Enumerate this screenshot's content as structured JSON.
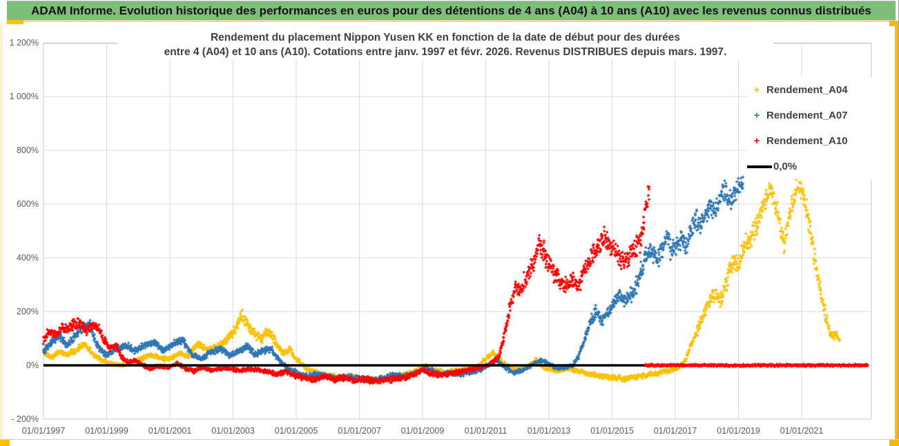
{
  "header": {
    "title": "ADAM Informe. Evolution historique des performances en euros pour des détentions de 4 ans (A04) à 10 ans (A10) avec les revenus connus distribués"
  },
  "chart_data": {
    "type": "scatter",
    "title_line1": "Rendement du placement Nippon Yusen KK en fonction de la date de début pour des durées",
    "title_line2": "entre 4 (A04) et 10 ans (A10). Cotations entre janv. 1997 et févr. 2026. Revenus DISTRIBUES depuis mars. 1997.",
    "grid": true,
    "x_axis": {
      "tick_labels": [
        "01/01/1997",
        "01/01/1999",
        "01/01/2001",
        "01/01/2003",
        "01/01/2005",
        "01/01/2007",
        "01/01/2009",
        "01/01/2011",
        "01/01/2013",
        "01/01/2015",
        "01/01/2017",
        "01/01/2019",
        "01/01/2021"
      ],
      "tick_years": [
        1997,
        1999,
        2001,
        2003,
        2005,
        2007,
        2009,
        2011,
        2013,
        2015,
        2017,
        2019,
        2021
      ],
      "range_years": [
        1997,
        2023.2
      ]
    },
    "y_axis": {
      "tick_labels": [
        "1 200%",
        "1 000%",
        "800%",
        "600%",
        "400%",
        "200%",
        "0%",
        "- 200%"
      ],
      "tick_values": [
        1200,
        1000,
        800,
        600,
        400,
        200,
        0,
        -200
      ],
      "ylim": [
        -200,
        1200
      ],
      "unit": "%"
    },
    "zero_line": {
      "label": "0,0%",
      "value": 0,
      "color": "#000000",
      "x_range_years": [
        1997,
        2017.0
      ]
    },
    "series": [
      {
        "name": "Rendement_A04",
        "color": "#FFC000",
        "marker": "plus",
        "waypoints": [
          [
            1997.0,
            55
          ],
          [
            1997.25,
            28
          ],
          [
            1997.5,
            50
          ],
          [
            1997.75,
            40
          ],
          [
            1998.0,
            55
          ],
          [
            1998.3,
            80
          ],
          [
            1998.6,
            40
          ],
          [
            1998.9,
            15
          ],
          [
            1999.2,
            5
          ],
          [
            1999.5,
            0
          ],
          [
            1999.8,
            10
          ],
          [
            2000.1,
            25
          ],
          [
            2000.4,
            40
          ],
          [
            2000.7,
            25
          ],
          [
            2001.0,
            25
          ],
          [
            2001.3,
            45
          ],
          [
            2001.6,
            35
          ],
          [
            2001.9,
            80
          ],
          [
            2002.2,
            55
          ],
          [
            2002.5,
            70
          ],
          [
            2002.8,
            95
          ],
          [
            2003.0,
            120
          ],
          [
            2003.3,
            185
          ],
          [
            2003.5,
            140
          ],
          [
            2003.7,
            115
          ],
          [
            2003.9,
            95
          ],
          [
            2004.1,
            130
          ],
          [
            2004.35,
            85
          ],
          [
            2004.6,
            45
          ],
          [
            2004.8,
            60
          ],
          [
            2005.0,
            25
          ],
          [
            2005.3,
            -10
          ],
          [
            2005.6,
            -25
          ],
          [
            2005.9,
            -35
          ],
          [
            2006.3,
            -45
          ],
          [
            2006.7,
            -40
          ],
          [
            2007.0,
            -50
          ],
          [
            2007.4,
            -55
          ],
          [
            2007.8,
            -50
          ],
          [
            2008.2,
            -40
          ],
          [
            2008.6,
            -30
          ],
          [
            2008.9,
            -15
          ],
          [
            2009.1,
            0
          ],
          [
            2009.35,
            -15
          ],
          [
            2009.7,
            -28
          ],
          [
            2010.0,
            -20
          ],
          [
            2010.3,
            -18
          ],
          [
            2010.7,
            -8
          ],
          [
            2011.0,
            25
          ],
          [
            2011.25,
            50
          ],
          [
            2011.5,
            15
          ],
          [
            2011.75,
            -5
          ],
          [
            2012.0,
            -18
          ],
          [
            2012.3,
            -8
          ],
          [
            2012.6,
            20
          ],
          [
            2012.8,
            -5
          ],
          [
            2013.0,
            -15
          ],
          [
            2013.3,
            -20
          ],
          [
            2013.6,
            -12
          ],
          [
            2013.9,
            -22
          ],
          [
            2014.2,
            -30
          ],
          [
            2014.6,
            -38
          ],
          [
            2015.0,
            -45
          ],
          [
            2015.4,
            -50
          ],
          [
            2015.8,
            -42
          ],
          [
            2016.1,
            -35
          ],
          [
            2016.5,
            -28
          ],
          [
            2016.9,
            -18
          ],
          [
            2017.1,
            -8
          ],
          [
            2017.3,
            15
          ],
          [
            2017.5,
            70
          ],
          [
            2017.7,
            130
          ],
          [
            2017.9,
            185
          ],
          [
            2018.1,
            240
          ],
          [
            2018.3,
            265
          ],
          [
            2018.45,
            240
          ],
          [
            2018.6,
            300
          ],
          [
            2018.8,
            390
          ],
          [
            2019.0,
            370
          ],
          [
            2019.2,
            450
          ],
          [
            2019.4,
            480
          ],
          [
            2019.6,
            530
          ],
          [
            2019.8,
            600
          ],
          [
            2020.0,
            660
          ],
          [
            2020.2,
            580
          ],
          [
            2020.45,
            450
          ],
          [
            2020.7,
            610
          ],
          [
            2020.9,
            685
          ],
          [
            2021.05,
            640
          ],
          [
            2021.25,
            520
          ],
          [
            2021.45,
            370
          ],
          [
            2021.65,
            240
          ],
          [
            2021.85,
            140
          ],
          [
            2022.0,
            105
          ],
          [
            2022.1,
            120
          ],
          [
            2022.2,
            90
          ]
        ]
      },
      {
        "name": "Rendement_A07",
        "color": "#2E75B6",
        "marker": "plus",
        "waypoints": [
          [
            1997.0,
            50
          ],
          [
            1997.25,
            85
          ],
          [
            1997.5,
            115
          ],
          [
            1997.75,
            75
          ],
          [
            1998.0,
            110
          ],
          [
            1998.2,
            140
          ],
          [
            1998.45,
            160
          ],
          [
            1998.7,
            75
          ],
          [
            1999.0,
            35
          ],
          [
            1999.3,
            60
          ],
          [
            1999.6,
            75
          ],
          [
            1999.9,
            55
          ],
          [
            2000.2,
            75
          ],
          [
            2000.5,
            85
          ],
          [
            2000.8,
            55
          ],
          [
            2001.1,
            80
          ],
          [
            2001.4,
            95
          ],
          [
            2001.7,
            40
          ],
          [
            2002.0,
            25
          ],
          [
            2002.3,
            50
          ],
          [
            2002.6,
            60
          ],
          [
            2002.9,
            35
          ],
          [
            2003.2,
            55
          ],
          [
            2003.45,
            70
          ],
          [
            2003.7,
            40
          ],
          [
            2003.95,
            55
          ],
          [
            2004.2,
            60
          ],
          [
            2004.5,
            15
          ],
          [
            2004.8,
            -15
          ],
          [
            2005.1,
            -30
          ],
          [
            2005.4,
            -40
          ],
          [
            2005.7,
            -30
          ],
          [
            2006.0,
            -40
          ],
          [
            2006.3,
            -48
          ],
          [
            2006.6,
            -40
          ],
          [
            2007.0,
            -50
          ],
          [
            2007.4,
            -58
          ],
          [
            2007.8,
            -48
          ],
          [
            2008.1,
            -35
          ],
          [
            2008.5,
            -40
          ],
          [
            2008.85,
            -25
          ],
          [
            2009.1,
            -8
          ],
          [
            2009.35,
            -22
          ],
          [
            2009.6,
            -32
          ],
          [
            2009.9,
            -28
          ],
          [
            2010.2,
            -32
          ],
          [
            2010.5,
            -28
          ],
          [
            2010.8,
            -18
          ],
          [
            2011.1,
            0
          ],
          [
            2011.35,
            22
          ],
          [
            2011.6,
            -8
          ],
          [
            2011.9,
            -28
          ],
          [
            2012.2,
            -18
          ],
          [
            2012.5,
            5
          ],
          [
            2012.75,
            20
          ],
          [
            2013.0,
            5
          ],
          [
            2013.25,
            -12
          ],
          [
            2013.5,
            -8
          ],
          [
            2013.75,
            0
          ],
          [
            2013.95,
            35
          ],
          [
            2014.15,
            105
          ],
          [
            2014.35,
            175
          ],
          [
            2014.5,
            200
          ],
          [
            2014.65,
            160
          ],
          [
            2014.85,
            195
          ],
          [
            2015.05,
            225
          ],
          [
            2015.25,
            265
          ],
          [
            2015.45,
            240
          ],
          [
            2015.65,
            270
          ],
          [
            2015.85,
            320
          ],
          [
            2016.05,
            400
          ],
          [
            2016.25,
            430
          ],
          [
            2016.45,
            390
          ],
          [
            2016.6,
            440
          ],
          [
            2016.75,
            480
          ],
          [
            2016.9,
            420
          ],
          [
            2017.05,
            450
          ],
          [
            2017.2,
            480
          ],
          [
            2017.35,
            440
          ],
          [
            2017.5,
            500
          ],
          [
            2017.65,
            545
          ],
          [
            2017.8,
            520
          ],
          [
            2017.95,
            560
          ],
          [
            2018.1,
            600
          ],
          [
            2018.25,
            555
          ],
          [
            2018.4,
            610
          ],
          [
            2018.55,
            650
          ],
          [
            2018.7,
            610
          ],
          [
            2018.85,
            640
          ],
          [
            2019.0,
            660
          ],
          [
            2019.15,
            675
          ]
        ]
      },
      {
        "name": "Rendement_A10",
        "color": "#FF0000",
        "marker": "plus",
        "waypoints": [
          [
            1997.0,
            95
          ],
          [
            1997.2,
            130
          ],
          [
            1997.4,
            110
          ],
          [
            1997.6,
            145
          ],
          [
            1997.8,
            135
          ],
          [
            1998.0,
            160
          ],
          [
            1998.2,
            150
          ],
          [
            1998.4,
            125
          ],
          [
            1998.55,
            155
          ],
          [
            1998.75,
            135
          ],
          [
            1998.9,
            95
          ],
          [
            1999.1,
            65
          ],
          [
            1999.3,
            75
          ],
          [
            1999.5,
            25
          ],
          [
            1999.7,
            10
          ],
          [
            1999.9,
            18
          ],
          [
            2000.1,
            2
          ],
          [
            2000.4,
            -12
          ],
          [
            2000.7,
            -2
          ],
          [
            2001.0,
            -8
          ],
          [
            2001.25,
            8
          ],
          [
            2001.5,
            -12
          ],
          [
            2001.75,
            -22
          ],
          [
            2002.0,
            -8
          ],
          [
            2002.3,
            -18
          ],
          [
            2002.6,
            -12
          ],
          [
            2002.9,
            -12
          ],
          [
            2003.2,
            -20
          ],
          [
            2003.5,
            -14
          ],
          [
            2003.8,
            -18
          ],
          [
            2004.1,
            -24
          ],
          [
            2004.4,
            -32
          ],
          [
            2004.7,
            -22
          ],
          [
            2005.0,
            -38
          ],
          [
            2005.3,
            -48
          ],
          [
            2005.6,
            -52
          ],
          [
            2005.9,
            -42
          ],
          [
            2006.2,
            -52
          ],
          [
            2006.5,
            -46
          ],
          [
            2006.8,
            -56
          ],
          [
            2007.2,
            -52
          ],
          [
            2007.6,
            -58
          ],
          [
            2008.0,
            -52
          ],
          [
            2008.4,
            -46
          ],
          [
            2008.75,
            -32
          ],
          [
            2009.0,
            -16
          ],
          [
            2009.2,
            -28
          ],
          [
            2009.5,
            -36
          ],
          [
            2009.8,
            -32
          ],
          [
            2010.1,
            -26
          ],
          [
            2010.5,
            -16
          ],
          [
            2010.9,
            -5
          ],
          [
            2011.15,
            5
          ],
          [
            2011.4,
            30
          ],
          [
            2011.6,
            120
          ],
          [
            2011.8,
            230
          ],
          [
            2011.95,
            300
          ],
          [
            2012.1,
            280
          ],
          [
            2012.25,
            320
          ],
          [
            2012.4,
            355
          ],
          [
            2012.55,
            400
          ],
          [
            2012.7,
            460
          ],
          [
            2012.8,
            430
          ],
          [
            2012.95,
            390
          ],
          [
            2013.15,
            340
          ],
          [
            2013.35,
            310
          ],
          [
            2013.55,
            295
          ],
          [
            2013.75,
            320
          ],
          [
            2013.95,
            300
          ],
          [
            2014.15,
            360
          ],
          [
            2014.35,
            410
          ],
          [
            2014.55,
            440
          ],
          [
            2014.75,
            490
          ],
          [
            2014.9,
            450
          ],
          [
            2015.1,
            420
          ],
          [
            2015.3,
            390
          ],
          [
            2015.5,
            400
          ],
          [
            2015.7,
            430
          ],
          [
            2015.9,
            450
          ],
          [
            2016.0,
            520
          ],
          [
            2016.1,
            600
          ],
          [
            2016.18,
            660
          ]
        ],
        "flat_zero_segment_years": [
          2016.05,
          2023.1
        ]
      }
    ],
    "legend": {
      "position": "right-top",
      "items": [
        {
          "label": "Rendement_A04",
          "color": "#FFC000",
          "marker": "plus"
        },
        {
          "label": "Rendement_A07",
          "color": "#2E75B6",
          "marker": "plus"
        },
        {
          "label": "Rendement_A10",
          "color": "#FF0000",
          "marker": "plus"
        },
        {
          "label": "0,0%",
          "color": "#000000",
          "marker": "line"
        }
      ]
    }
  }
}
